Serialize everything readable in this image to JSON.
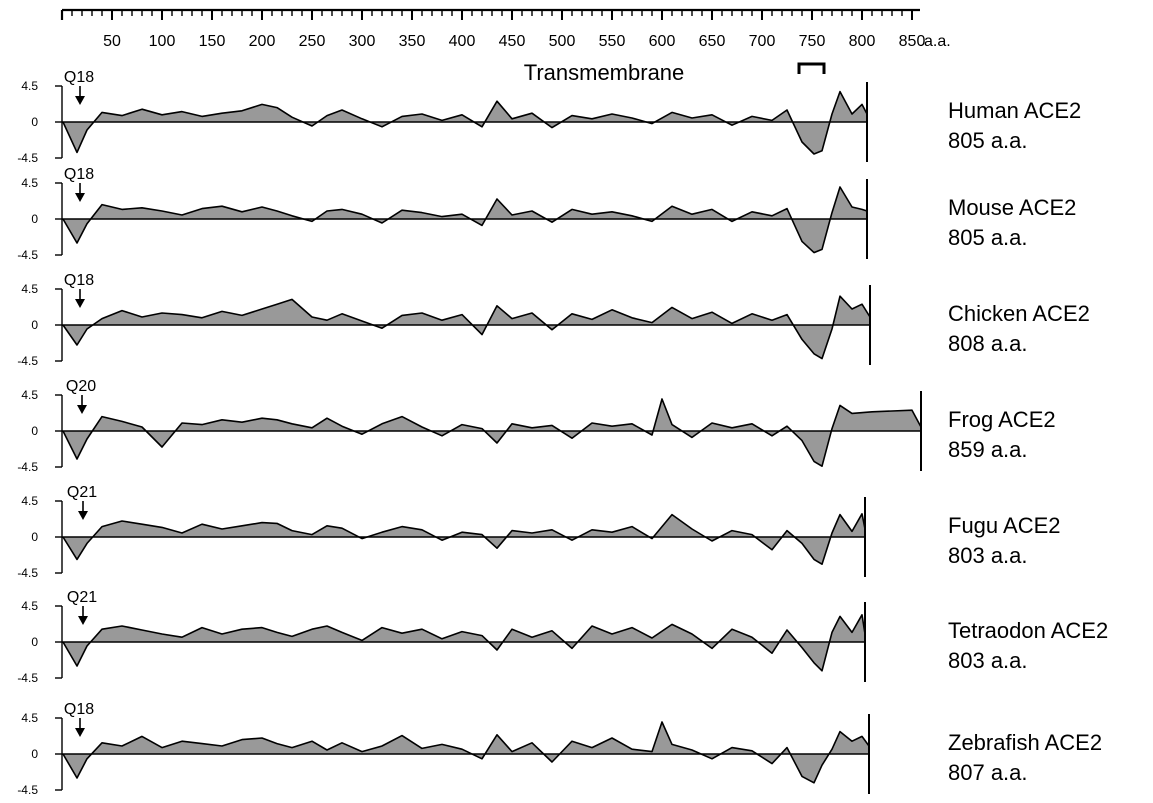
{
  "chart_data": {
    "type": "area",
    "x_axis": {
      "ticks": [
        50,
        100,
        150,
        200,
        250,
        300,
        350,
        400,
        450,
        500,
        550,
        600,
        650,
        700,
        750,
        800,
        850
      ],
      "unit_label": "a.a.",
      "range": [
        0,
        860
      ]
    },
    "y_axis": {
      "ticks": [
        "4.5",
        "0",
        "-4.5"
      ],
      "range": [
        -4.5,
        4.5
      ]
    },
    "annotation": {
      "label": "Transmembrane",
      "start": 737,
      "end": 762
    },
    "series": [
      {
        "name": "Human ACE2",
        "length_label": "805 a.a.",
        "length": 805,
        "marker": {
          "label": "Q18",
          "position": 18
        },
        "x": [
          1,
          15,
          25,
          40,
          60,
          80,
          100,
          120,
          140,
          160,
          180,
          200,
          215,
          230,
          250,
          265,
          280,
          300,
          320,
          340,
          360,
          380,
          400,
          420,
          435,
          450,
          470,
          490,
          510,
          530,
          550,
          570,
          590,
          610,
          630,
          650,
          670,
          690,
          710,
          725,
          740,
          752,
          760,
          770,
          778,
          790,
          800,
          805
        ],
        "values": [
          0,
          -3.8,
          -1.0,
          1.2,
          0.8,
          1.6,
          0.9,
          1.3,
          0.7,
          1.1,
          1.4,
          2.2,
          1.8,
          0.6,
          -0.5,
          0.8,
          1.5,
          0.4,
          -0.6,
          0.7,
          1.0,
          0.2,
          0.9,
          -0.6,
          2.6,
          0.4,
          1.1,
          -0.7,
          0.8,
          0.4,
          1.0,
          0.5,
          -0.2,
          1.2,
          0.5,
          0.9,
          -0.4,
          0.7,
          0.2,
          1.5,
          -2.5,
          -4.0,
          -3.6,
          1.0,
          3.8,
          1.0,
          2.2,
          1.0
        ]
      },
      {
        "name": "Mouse ACE2",
        "length_label": "805 a.a.",
        "length": 805,
        "marker": {
          "label": "Q18",
          "position": 18
        },
        "x": [
          1,
          15,
          25,
          40,
          60,
          80,
          100,
          120,
          140,
          160,
          180,
          200,
          215,
          230,
          250,
          265,
          280,
          300,
          320,
          340,
          360,
          380,
          400,
          420,
          435,
          450,
          470,
          490,
          510,
          530,
          550,
          570,
          590,
          610,
          630,
          650,
          670,
          690,
          710,
          725,
          740,
          752,
          760,
          770,
          778,
          790,
          800,
          805
        ],
        "values": [
          0,
          -3.0,
          -0.6,
          1.8,
          1.2,
          1.4,
          1.0,
          0.5,
          1.3,
          1.6,
          0.9,
          1.5,
          1.0,
          0.4,
          -0.3,
          1.0,
          1.2,
          0.6,
          -0.5,
          1.1,
          0.8,
          0.3,
          0.6,
          -0.8,
          2.5,
          0.5,
          1.0,
          -0.4,
          1.2,
          0.6,
          0.9,
          0.4,
          -0.3,
          1.6,
          0.6,
          1.2,
          -0.3,
          0.9,
          0.4,
          1.3,
          -2.8,
          -4.2,
          -3.8,
          0.8,
          4.0,
          1.5,
          1.2,
          1.0
        ]
      },
      {
        "name": "Chicken ACE2",
        "length_label": "808 a.a.",
        "length": 808,
        "marker": {
          "label": "Q18",
          "position": 18
        },
        "x": [
          1,
          15,
          25,
          40,
          60,
          80,
          100,
          120,
          140,
          160,
          180,
          200,
          215,
          230,
          250,
          265,
          280,
          300,
          320,
          340,
          360,
          380,
          400,
          420,
          435,
          450,
          470,
          490,
          510,
          530,
          550,
          570,
          590,
          610,
          630,
          650,
          670,
          690,
          710,
          725,
          740,
          752,
          760,
          770,
          778,
          790,
          800,
          808
        ],
        "values": [
          0,
          -2.5,
          -0.5,
          0.8,
          1.8,
          1.0,
          1.5,
          1.3,
          0.9,
          1.7,
          1.2,
          2.0,
          2.6,
          3.2,
          1.0,
          0.6,
          1.4,
          0.5,
          -0.4,
          1.2,
          1.5,
          0.6,
          1.3,
          -1.2,
          2.4,
          0.8,
          1.5,
          -0.6,
          1.4,
          0.7,
          1.9,
          0.9,
          0.3,
          2.2,
          0.8,
          1.6,
          0.2,
          1.4,
          0.6,
          1.3,
          -1.8,
          -3.6,
          -4.2,
          -0.5,
          3.6,
          2.0,
          2.6,
          1.0
        ]
      },
      {
        "name": "Frog ACE2",
        "length_label": "859 a.a.",
        "length": 859,
        "marker": {
          "label": "Q20",
          "position": 20
        },
        "x": [
          1,
          15,
          25,
          40,
          60,
          80,
          100,
          120,
          140,
          160,
          180,
          200,
          215,
          230,
          250,
          265,
          280,
          300,
          320,
          340,
          360,
          380,
          400,
          420,
          435,
          450,
          470,
          490,
          510,
          530,
          550,
          570,
          590,
          600,
          610,
          630,
          650,
          670,
          690,
          710,
          725,
          740,
          752,
          760,
          770,
          778,
          790,
          810,
          830,
          850,
          859
        ],
        "values": [
          0,
          -3.5,
          -1.0,
          1.8,
          1.2,
          0.5,
          -2.0,
          1.0,
          0.8,
          1.4,
          1.1,
          1.6,
          1.4,
          0.9,
          0.4,
          1.6,
          0.6,
          -0.4,
          0.9,
          1.8,
          0.5,
          -0.6,
          0.8,
          0.3,
          -1.5,
          0.9,
          0.4,
          0.7,
          -0.9,
          1.0,
          0.6,
          0.9,
          -0.5,
          4.0,
          0.8,
          -0.8,
          1.0,
          0.4,
          0.9,
          -0.6,
          0.6,
          -1.2,
          -3.8,
          -4.4,
          0.3,
          3.2,
          2.2,
          2.4,
          2.5,
          2.6,
          0.5
        ]
      },
      {
        "name": "Fugu ACE2",
        "length_label": "803 a.a.",
        "length": 803,
        "marker": {
          "label": "Q21",
          "position": 21
        },
        "x": [
          1,
          15,
          25,
          40,
          60,
          80,
          100,
          120,
          140,
          160,
          180,
          200,
          215,
          230,
          250,
          265,
          280,
          300,
          320,
          340,
          360,
          380,
          400,
          420,
          435,
          450,
          470,
          490,
          510,
          530,
          550,
          570,
          590,
          610,
          630,
          650,
          670,
          690,
          710,
          725,
          740,
          752,
          760,
          770,
          778,
          790,
          800,
          803
        ],
        "values": [
          0,
          -2.8,
          -0.8,
          1.3,
          2.0,
          1.6,
          1.2,
          0.5,
          1.6,
          1.0,
          1.4,
          1.8,
          1.7,
          0.8,
          0.3,
          1.4,
          1.1,
          -0.2,
          0.6,
          1.3,
          0.9,
          -0.4,
          0.6,
          0.3,
          -1.4,
          0.8,
          0.5,
          0.9,
          -0.4,
          0.9,
          0.6,
          1.3,
          -0.2,
          2.8,
          1.0,
          -0.5,
          0.8,
          0.3,
          -1.6,
          0.8,
          -0.8,
          -2.8,
          -3.4,
          0.5,
          2.8,
          0.7,
          2.9,
          1.0
        ]
      },
      {
        "name": "Tetraodon ACE2",
        "length_label": "803 a.a.",
        "length": 803,
        "marker": {
          "label": "Q21",
          "position": 21
        },
        "x": [
          1,
          15,
          25,
          40,
          60,
          80,
          100,
          120,
          140,
          160,
          180,
          200,
          215,
          230,
          250,
          265,
          280,
          300,
          320,
          340,
          360,
          380,
          400,
          420,
          435,
          450,
          470,
          490,
          510,
          530,
          550,
          570,
          590,
          610,
          630,
          650,
          670,
          690,
          710,
          725,
          740,
          752,
          760,
          770,
          778,
          790,
          800,
          803
        ],
        "values": [
          0,
          -3.0,
          -0.5,
          1.6,
          2.0,
          1.5,
          1.0,
          0.6,
          1.8,
          1.0,
          1.6,
          1.8,
          1.2,
          0.7,
          1.6,
          2.0,
          1.2,
          0.2,
          1.8,
          1.1,
          1.6,
          0.4,
          1.3,
          0.8,
          -1.0,
          1.6,
          0.6,
          1.4,
          -0.8,
          2.0,
          1.0,
          1.8,
          0.5,
          2.2,
          1.0,
          -0.8,
          1.6,
          0.6,
          -1.4,
          1.5,
          -0.7,
          -2.6,
          -3.6,
          1.2,
          3.2,
          1.2,
          3.4,
          1.0
        ]
      },
      {
        "name": "Zebrafish ACE2",
        "length_label": "807 a.a.",
        "length": 807,
        "marker": {
          "label": "Q18",
          "position": 18
        },
        "x": [
          1,
          15,
          25,
          40,
          60,
          80,
          100,
          120,
          140,
          160,
          180,
          200,
          215,
          230,
          250,
          265,
          280,
          300,
          320,
          340,
          360,
          380,
          400,
          420,
          435,
          450,
          470,
          490,
          510,
          530,
          550,
          570,
          590,
          600,
          610,
          630,
          650,
          670,
          690,
          710,
          725,
          740,
          752,
          760,
          770,
          778,
          790,
          800,
          807
        ],
        "values": [
          0,
          -3.0,
          -0.6,
          1.4,
          1.0,
          2.2,
          0.8,
          1.6,
          1.3,
          1.0,
          1.8,
          2.0,
          1.3,
          0.8,
          1.6,
          0.5,
          1.4,
          0.3,
          1.0,
          2.3,
          0.7,
          1.2,
          0.6,
          -0.6,
          2.4,
          0.3,
          1.4,
          -1.0,
          1.6,
          0.8,
          2.0,
          0.6,
          0.3,
          4.0,
          1.2,
          0.5,
          -0.6,
          0.8,
          0.4,
          -1.2,
          0.8,
          -2.8,
          -3.6,
          -1.4,
          0.6,
          2.8,
          1.6,
          2.2,
          1.0
        ]
      }
    ]
  }
}
